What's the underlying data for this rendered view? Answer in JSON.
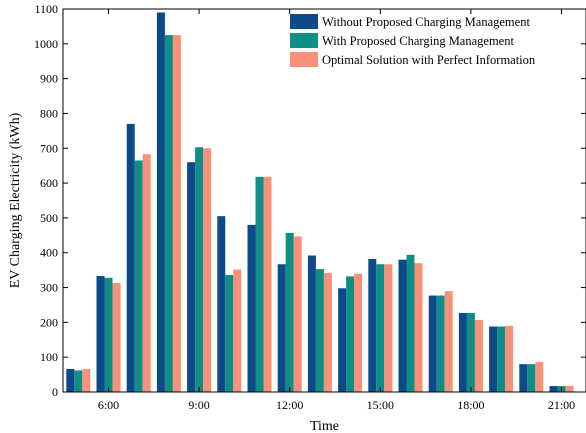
{
  "chart_data": {
    "type": "bar",
    "xlabel": "Time",
    "ylabel": "EV Charging Electricity (kWh)",
    "ylim": [
      0,
      1100
    ],
    "yticks": [
      0,
      100,
      200,
      300,
      400,
      500,
      600,
      700,
      800,
      900,
      1000,
      1100
    ],
    "grid": false,
    "legend_position": "top-right",
    "x_tick_labels": [
      {
        "index": 1,
        "label": "6:00"
      },
      {
        "index": 4,
        "label": "9:00"
      },
      {
        "index": 7,
        "label": "12:00"
      },
      {
        "index": 10,
        "label": "15:00"
      },
      {
        "index": 13,
        "label": "18:00"
      },
      {
        "index": 16,
        "label": "21:00"
      }
    ],
    "categories": [
      "",
      "6:00",
      "",
      "",
      "9:00",
      "",
      "",
      "12:00",
      "",
      "",
      "15:00",
      "",
      "",
      "18:00",
      "",
      "",
      "21:00"
    ],
    "series": [
      {
        "name": "Without Proposed Charging Management",
        "color": "#0d4a8a",
        "values": [
          66,
          333,
          770,
          1090,
          660,
          505,
          480,
          367,
          392,
          298,
          382,
          380,
          277,
          227,
          188,
          80,
          17
        ]
      },
      {
        "name": "With Proposed Charging Management",
        "color": "#0f8d87",
        "values": [
          62,
          328,
          665,
          1025,
          703,
          336,
          618,
          457,
          353,
          332,
          367,
          394,
          277,
          227,
          188,
          80,
          17
        ]
      },
      {
        "name": "Optimal Solution with Perfect Information",
        "color": "#f7917a",
        "values": [
          66,
          313,
          683,
          1025,
          700,
          352,
          618,
          447,
          342,
          340,
          367,
          370,
          290,
          207,
          190,
          86,
          17
        ]
      }
    ]
  }
}
